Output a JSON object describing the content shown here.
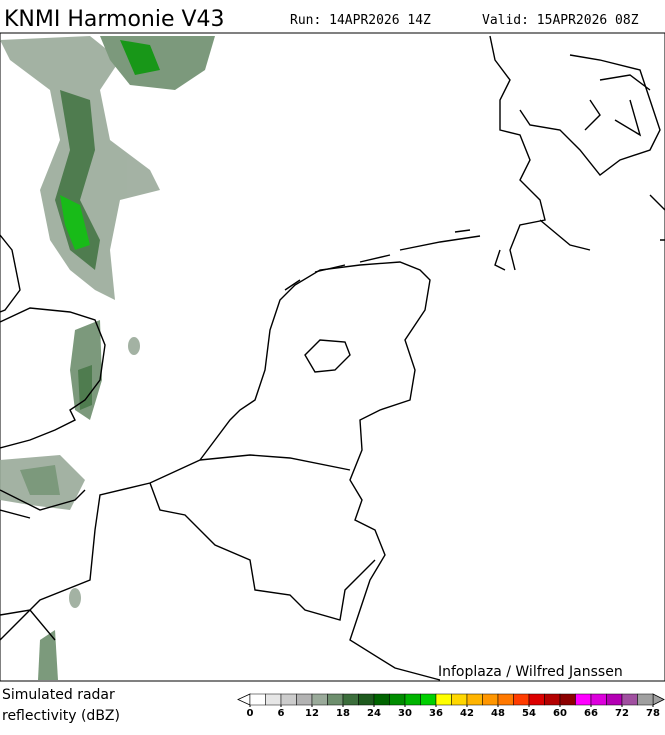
{
  "header": {
    "title": "KNMI Harmonie V43",
    "run": "Run: 14APR2026 14Z",
    "valid": "Valid: 15APR2026 08Z"
  },
  "map": {
    "credit": "Infoplaza / Wilfred Janssen"
  },
  "legend": {
    "label_line1": "Simulated radar",
    "label_line2": "reflectivity (dBZ)",
    "min": 0,
    "max": 78,
    "ticks": [
      0,
      6,
      12,
      18,
      24,
      30,
      36,
      42,
      48,
      54,
      60,
      66,
      72,
      78
    ],
    "colors": [
      "#ffffff",
      "#e6e6e6",
      "#cccccc",
      "#b3b3b3",
      "#9aaa9a",
      "#6e8f6e",
      "#3c6e3c",
      "#1e5a1e",
      "#006400",
      "#008c00",
      "#00b400",
      "#00d000",
      "#ffff00",
      "#ffd700",
      "#ffb400",
      "#ff9600",
      "#ff7800",
      "#ff3c00",
      "#dc0000",
      "#b40000",
      "#8c0000",
      "#ff00ff",
      "#dc00dc",
      "#b400b4",
      "#a050a0",
      "#a0a0a0"
    ]
  }
}
